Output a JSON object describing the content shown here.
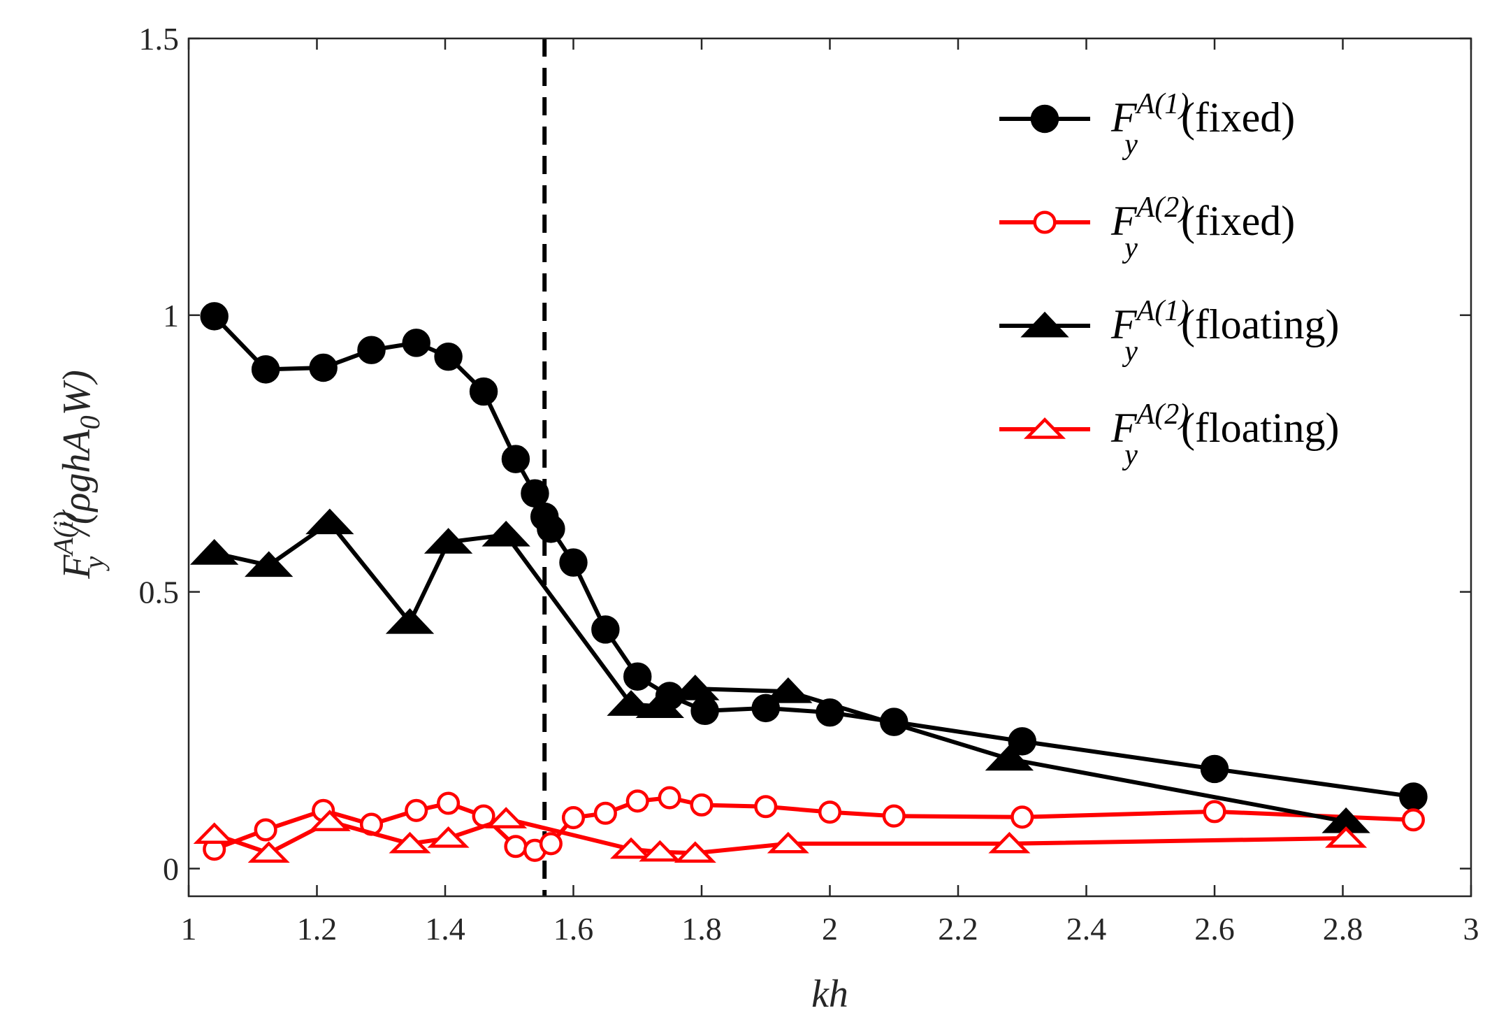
{
  "chart_data": {
    "type": "line",
    "xlabel": "kh",
    "ylabel": {
      "symbol": "F",
      "superscript": "A(i)",
      "subscript": "y",
      "denominator_prefix": "/(ρghA",
      "denominator_sub": "0",
      "denominator_suffix": "W)"
    },
    "xlim": [
      1,
      3
    ],
    "ylim": [
      -0.05,
      1.5
    ],
    "xticks": [
      1,
      1.2,
      1.4,
      1.6,
      1.8,
      2,
      2.2,
      2.4,
      2.6,
      2.8,
      3
    ],
    "xtick_labels": [
      "1",
      "1.2",
      "1.4",
      "1.6",
      "1.8",
      "2",
      "2.2",
      "2.4",
      "2.6",
      "2.8",
      "3"
    ],
    "yticks": [
      0,
      0.5,
      1,
      1.5
    ],
    "ytick_labels": [
      "0",
      "0.5",
      "1",
      "1.5"
    ],
    "vline": {
      "x": 1.555,
      "style": "dashed",
      "color": "#000000"
    },
    "legend_position": "top-right",
    "series": [
      {
        "name": "F_y^A(1) (fixed)",
        "legend": {
          "symbol": "F",
          "superscript": "A(1)",
          "subscript": "y",
          "suffix": "(fixed)"
        },
        "color": "#000000",
        "marker": "circle",
        "filled": true,
        "x": [
          1.04,
          1.12,
          1.21,
          1.285,
          1.355,
          1.405,
          1.46,
          1.51,
          1.54,
          1.555,
          1.565,
          1.6,
          1.65,
          1.7,
          1.75,
          1.805,
          1.9,
          2.0,
          2.1,
          2.3,
          2.6,
          2.91
        ],
        "y": [
          0.998,
          0.902,
          0.905,
          0.937,
          0.95,
          0.925,
          0.862,
          0.74,
          0.678,
          0.636,
          0.614,
          0.553,
          0.432,
          0.347,
          0.312,
          0.285,
          0.29,
          0.282,
          0.265,
          0.23,
          0.18,
          0.13
        ]
      },
      {
        "name": "F_y^A(2) (fixed)",
        "legend": {
          "symbol": "F",
          "superscript": "A(2)",
          "subscript": "y",
          "suffix": "(fixed)"
        },
        "color": "#ff0000",
        "marker": "circle",
        "filled": false,
        "x": [
          1.04,
          1.12,
          1.21,
          1.285,
          1.355,
          1.405,
          1.46,
          1.51,
          1.54,
          1.565,
          1.6,
          1.65,
          1.7,
          1.75,
          1.8,
          1.9,
          2.0,
          2.1,
          2.3,
          2.6,
          2.91
        ],
        "y": [
          0.035,
          0.07,
          0.105,
          0.08,
          0.105,
          0.118,
          0.095,
          0.04,
          0.033,
          0.045,
          0.092,
          0.1,
          0.122,
          0.128,
          0.115,
          0.112,
          0.102,
          0.095,
          0.093,
          0.103,
          0.088
        ]
      },
      {
        "name": "F_y^A(1) (floating)",
        "legend": {
          "symbol": "F",
          "superscript": "A(1)",
          "subscript": "y",
          "suffix": "(floating)"
        },
        "color": "#000000",
        "marker": "triangle",
        "filled": true,
        "x": [
          1.04,
          1.125,
          1.22,
          1.345,
          1.405,
          1.495,
          1.69,
          1.735,
          1.79,
          1.935,
          2.28,
          2.805
        ],
        "y": [
          0.57,
          0.548,
          0.625,
          0.445,
          0.59,
          0.603,
          0.297,
          0.293,
          0.325,
          0.32,
          0.198,
          0.085
        ]
      },
      {
        "name": "F_y^A(2) (floating)",
        "legend": {
          "symbol": "F",
          "superscript": "A(2)",
          "subscript": "y",
          "suffix": "(floating)"
        },
        "color": "#ff0000",
        "marker": "triangle",
        "filled": false,
        "x": [
          1.04,
          1.125,
          1.22,
          1.345,
          1.405,
          1.495,
          1.69,
          1.735,
          1.79,
          1.935,
          2.28,
          2.805
        ],
        "y": [
          0.062,
          0.028,
          0.085,
          0.045,
          0.055,
          0.09,
          0.035,
          0.03,
          0.028,
          0.045,
          0.045,
          0.055
        ]
      }
    ]
  }
}
